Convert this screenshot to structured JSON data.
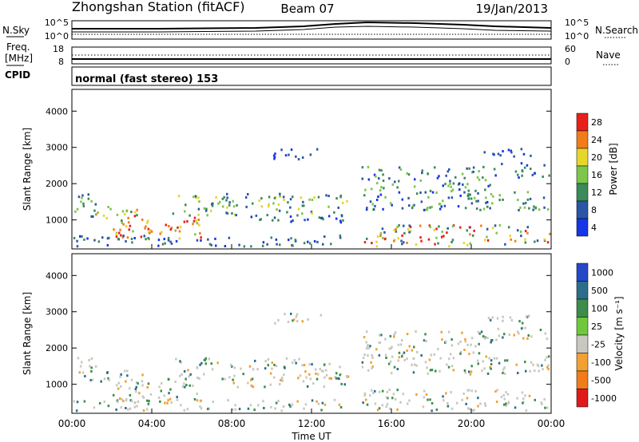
{
  "header": {
    "station": "Zhongshan Station (fitACF)",
    "beam": "Beam 07",
    "date": "19/Jan/2013"
  },
  "noise_panel": {
    "left_label": "N.Sky",
    "right_label": "N.Search",
    "ticks_left": [
      "10^5",
      "10^0"
    ],
    "ticks_right": [
      "10^5",
      "10^0"
    ]
  },
  "freq_panel": {
    "left_label_1": "Freq.",
    "left_label_2": "[MHz]",
    "right_label": "Nave",
    "ticks_left": [
      "18",
      "8"
    ],
    "ticks_right": [
      "60",
      "0"
    ]
  },
  "cpid_panel": {
    "label": "CPID",
    "mode_text": "normal (fast stereo) 153"
  },
  "chart_data": [
    {
      "type": "heatmap",
      "name": "power",
      "ylabel": "Slant Range [km]",
      "yticks": [
        "1000",
        "2000",
        "3000",
        "4000"
      ],
      "ylim": [
        200,
        4600
      ],
      "colorbar_label": "Power [dB]",
      "colorbar_ticks": [
        "4",
        "8",
        "12",
        "16",
        "20",
        "24",
        "28"
      ],
      "colors": [
        "#1535e6",
        "#2b56a6",
        "#3a8a5a",
        "#7cc64a",
        "#e6d62a",
        "#f27c1a",
        "#e8201a"
      ]
    },
    {
      "type": "heatmap",
      "name": "velocity",
      "ylabel": "Slant Range [km]",
      "yticks": [
        "1000",
        "2000",
        "3000",
        "4000"
      ],
      "ylim": [
        200,
        4600
      ],
      "colorbar_label": "Velocity [m s⁻¹]",
      "colorbar_ticks": [
        "1000",
        "500",
        "100",
        "25",
        "-25",
        "-100",
        "-500",
        "-1000"
      ],
      "colors": [
        "#2548c8",
        "#2c6e8a",
        "#3c8c4a",
        "#6ec83c",
        "#c8c8c0",
        "#f2a030",
        "#f27c1a",
        "#e01a1a"
      ]
    }
  ],
  "time_axis": {
    "xlabel": "Time UT",
    "ticks": [
      "00:00",
      "04:00",
      "08:00",
      "12:00",
      "16:00",
      "20:00",
      "00:00"
    ]
  }
}
